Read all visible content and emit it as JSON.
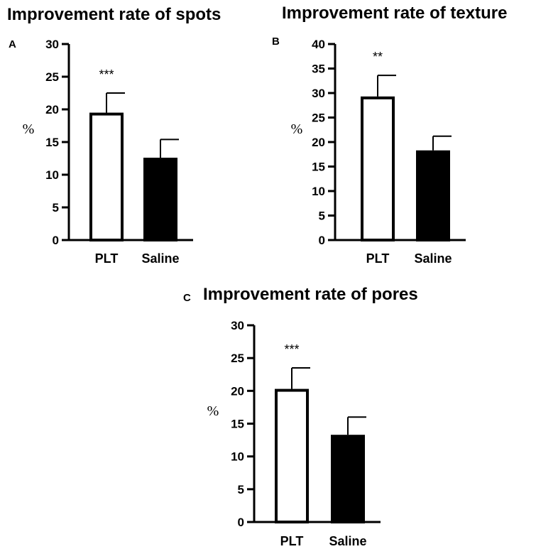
{
  "chart_data": [
    {
      "panel": "A",
      "type": "bar",
      "title": "Improvement rate of spots",
      "ylabel": "%",
      "xlabel": "",
      "ylim": [
        0,
        30
      ],
      "yticks": [
        0,
        5,
        10,
        15,
        20,
        25,
        30
      ],
      "categories": [
        "PLT",
        "Saline"
      ],
      "values": [
        19.5,
        12.6
      ],
      "errors": [
        3.0,
        2.8
      ],
      "fills": [
        "#ffffff",
        "#000000"
      ],
      "significance": [
        "***",
        ""
      ]
    },
    {
      "panel": "B",
      "type": "bar",
      "title": "Improvement rate of texture",
      "ylabel": "%",
      "xlabel": "",
      "ylim": [
        0,
        40
      ],
      "yticks": [
        0,
        5,
        10,
        15,
        20,
        25,
        30,
        35,
        40
      ],
      "categories": [
        "PLT",
        "Saline"
      ],
      "values": [
        29.3,
        18.3
      ],
      "errors": [
        4.3,
        2.9
      ],
      "fills": [
        "#ffffff",
        "#000000"
      ],
      "significance": [
        "**",
        ""
      ]
    },
    {
      "panel": "C",
      "type": "bar",
      "title": "Improvement rate of pores",
      "ylabel": "%",
      "xlabel": "",
      "ylim": [
        0,
        30
      ],
      "yticks": [
        0,
        5,
        10,
        15,
        20,
        25,
        30
      ],
      "categories": [
        "PLT",
        "Saline"
      ],
      "values": [
        20.3,
        13.3
      ],
      "errors": [
        3.2,
        2.7
      ],
      "fills": [
        "#ffffff",
        "#000000"
      ],
      "significance": [
        "***",
        ""
      ]
    }
  ]
}
